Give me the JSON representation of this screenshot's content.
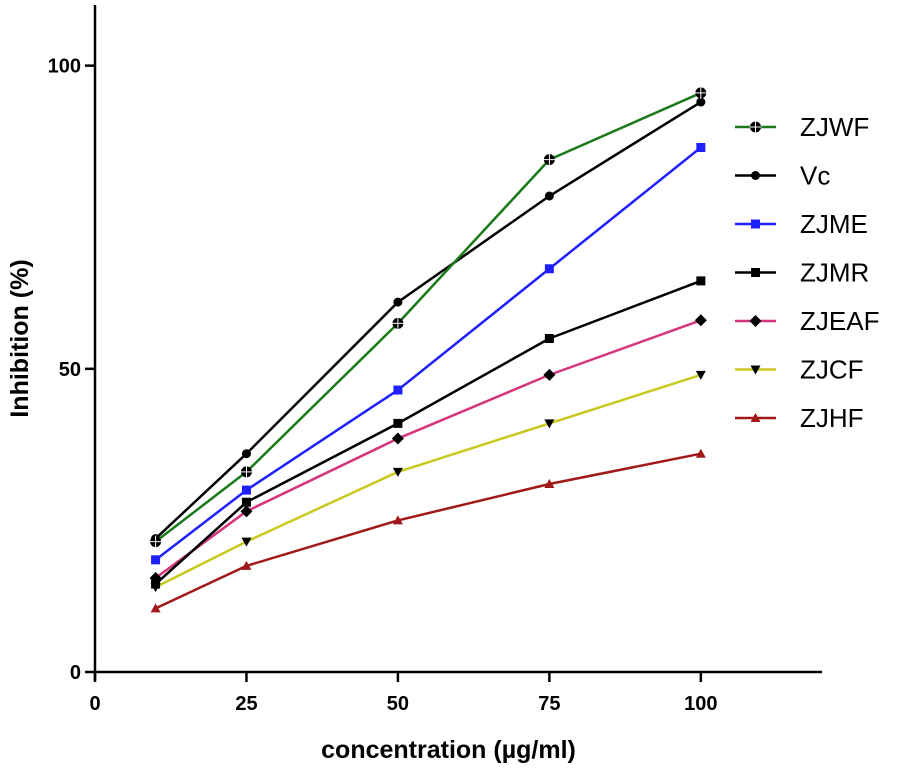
{
  "chart_data": {
    "type": "line",
    "title": "",
    "xlabel": "concentration (µg/ml)",
    "ylabel": "Inhibition (%)",
    "xlim": [
      0,
      120
    ],
    "ylim": [
      0,
      110
    ],
    "x_ticks": [
      0,
      25,
      50,
      75,
      100
    ],
    "x_tick_labels": [
      "0",
      "25",
      "50",
      "75",
      "100"
    ],
    "y_ticks": [
      0,
      50,
      100
    ],
    "y_tick_labels": [
      "0",
      "50",
      "100"
    ],
    "grid": false,
    "legend_position": "right",
    "x": [
      10,
      25,
      50,
      75,
      100
    ],
    "series": [
      {
        "name": "ZJWF",
        "color": "#1a7a1a",
        "marker": "circle-cross",
        "values": [
          21.5,
          33,
          57.5,
          84.5,
          95.5
        ]
      },
      {
        "name": "Vc",
        "color": "#000000",
        "marker": "circle",
        "values": [
          22,
          36,
          61,
          78.5,
          94
        ]
      },
      {
        "name": "ZJME",
        "color": "#1f1fff",
        "marker": "square",
        "values": [
          18.5,
          30,
          46.5,
          66.5,
          86.5
        ]
      },
      {
        "name": "ZJMR",
        "color": "#000000",
        "marker": "square",
        "values": [
          14.5,
          28,
          41,
          55,
          64.5
        ]
      },
      {
        "name": "ZJEAF",
        "color": "#d4357d",
        "marker": "diamond",
        "values": [
          15.5,
          26.5,
          38.5,
          49,
          58
        ]
      },
      {
        "name": "ZJCF",
        "color": "#c8c81e",
        "marker": "triangle-down",
        "values": [
          14,
          21.5,
          33,
          41,
          49
        ]
      },
      {
        "name": "ZJHF",
        "color": "#a01818",
        "marker": "triangle-up",
        "values": [
          10.5,
          17.5,
          25,
          31,
          36
        ]
      }
    ]
  }
}
